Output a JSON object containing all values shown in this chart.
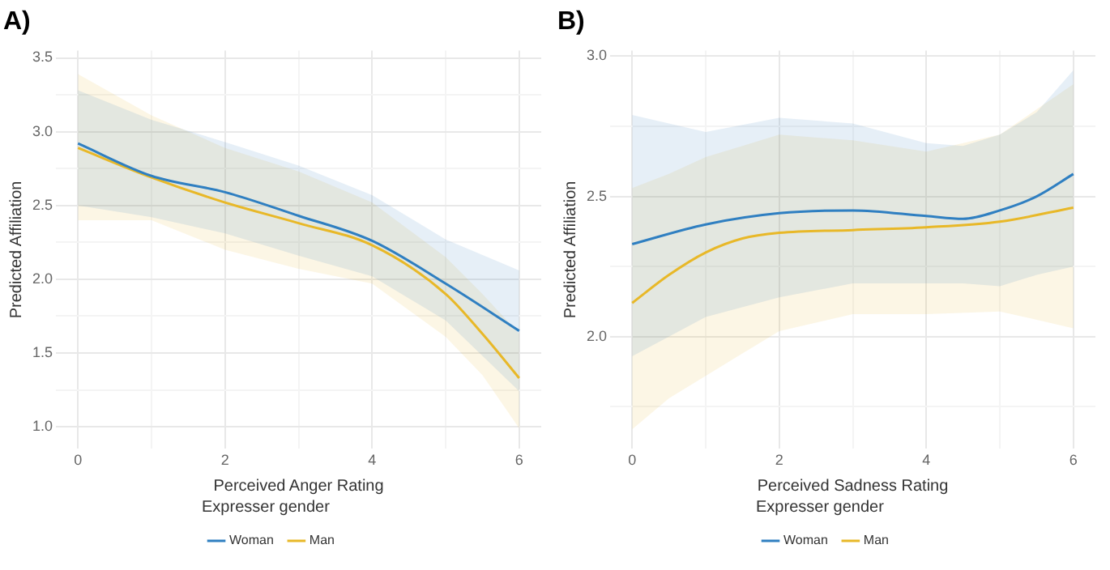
{
  "chart_data": [
    {
      "type": "line",
      "title": "A)",
      "xlabel": "Perceived Anger Rating",
      "ylabel": "Predicted Affiliation",
      "legend_title": "Expresser gender",
      "legend": "bottom",
      "grid": true,
      "marker": "none",
      "line_style": "solid",
      "xlim": [
        -0.3,
        6.3
      ],
      "ylim": [
        0.85,
        3.55
      ],
      "xticks": [
        0,
        {
          "value": 1,
          "label": null
        },
        2,
        {
          "value": 3,
          "label": null
        },
        4,
        {
          "value": 5,
          "label": null
        },
        6
      ],
      "yticks": [
        {
          "value": 1,
          "label": "1.0"
        },
        {
          "value": 1.25,
          "label": null
        },
        1.5,
        {
          "value": 1.75,
          "label": null
        },
        {
          "value": 2,
          "label": "2.0"
        },
        {
          "value": 2.25,
          "label": null
        },
        2.5,
        {
          "value": 2.75,
          "label": null
        },
        {
          "value": 3,
          "label": "3.0"
        },
        {
          "value": 3.25,
          "label": null
        },
        3.5
      ],
      "series": [
        {
          "name": "Woman",
          "color": "#2f7fc1",
          "x": [
            0,
            1,
            2,
            3,
            4,
            5,
            6
          ],
          "values": [
            2.92,
            2.7,
            2.59,
            2.43,
            2.26,
            1.97,
            1.65
          ],
          "lower": [
            2.5,
            2.42,
            2.31,
            2.16,
            2.02,
            1.72,
            1.24
          ],
          "upper": [
            3.28,
            3.08,
            2.93,
            2.77,
            2.57,
            2.27,
            2.06
          ]
        },
        {
          "name": "Man",
          "color": "#e8b828",
          "x": [
            0,
            1,
            2,
            3,
            4,
            5,
            5.5,
            6
          ],
          "values": [
            2.89,
            2.69,
            2.52,
            2.38,
            2.23,
            1.9,
            1.63,
            1.33
          ],
          "lower": [
            2.4,
            2.4,
            2.2,
            2.07,
            1.97,
            1.61,
            1.35,
            0.99
          ],
          "upper": [
            3.39,
            3.11,
            2.89,
            2.73,
            2.52,
            2.15,
            1.9,
            1.63
          ]
        }
      ]
    },
    {
      "type": "line",
      "title": "B)",
      "xlabel": "Perceived Sadness Rating",
      "ylabel": "Predicted Affiliation",
      "legend_title": "Expresser gender",
      "legend": "bottom",
      "grid": true,
      "marker": "none",
      "line_style": "solid",
      "xlim": [
        -0.3,
        6.3
      ],
      "ylim": [
        1.6,
        3.02
      ],
      "xticks": [
        0,
        {
          "value": 1,
          "label": null
        },
        2,
        {
          "value": 3,
          "label": null
        },
        4,
        {
          "value": 5,
          "label": null
        },
        6
      ],
      "yticks": [
        {
          "value": 1.75,
          "label": null
        },
        {
          "value": 2,
          "label": "2.0"
        },
        {
          "value": 2.25,
          "label": null
        },
        2.5,
        {
          "value": 2.75,
          "label": null
        },
        {
          "value": 3,
          "label": "3.0"
        }
      ],
      "series": [
        {
          "name": "Woman",
          "color": "#2f7fc1",
          "x": [
            0,
            1,
            2,
            3,
            4,
            4.5,
            5,
            5.5,
            6
          ],
          "values": [
            2.33,
            2.4,
            2.44,
            2.45,
            2.43,
            2.42,
            2.45,
            2.5,
            2.58
          ],
          "lower": [
            1.93,
            2.07,
            2.14,
            2.19,
            2.19,
            2.19,
            2.18,
            2.22,
            2.25
          ],
          "upper": [
            2.79,
            2.73,
            2.78,
            2.76,
            2.69,
            2.68,
            2.72,
            2.8,
            2.95
          ]
        },
        {
          "name": "Man",
          "color": "#e8b828",
          "x": [
            0,
            0.5,
            1,
            1.5,
            2,
            3,
            4,
            5,
            6
          ],
          "values": [
            2.12,
            2.22,
            2.3,
            2.35,
            2.37,
            2.38,
            2.39,
            2.41,
            2.46
          ],
          "lower": [
            1.67,
            1.78,
            1.86,
            1.94,
            2.02,
            2.08,
            2.08,
            2.09,
            2.03
          ],
          "upper": [
            2.53,
            2.58,
            2.64,
            2.68,
            2.72,
            2.7,
            2.66,
            2.72,
            2.9
          ]
        }
      ]
    }
  ]
}
